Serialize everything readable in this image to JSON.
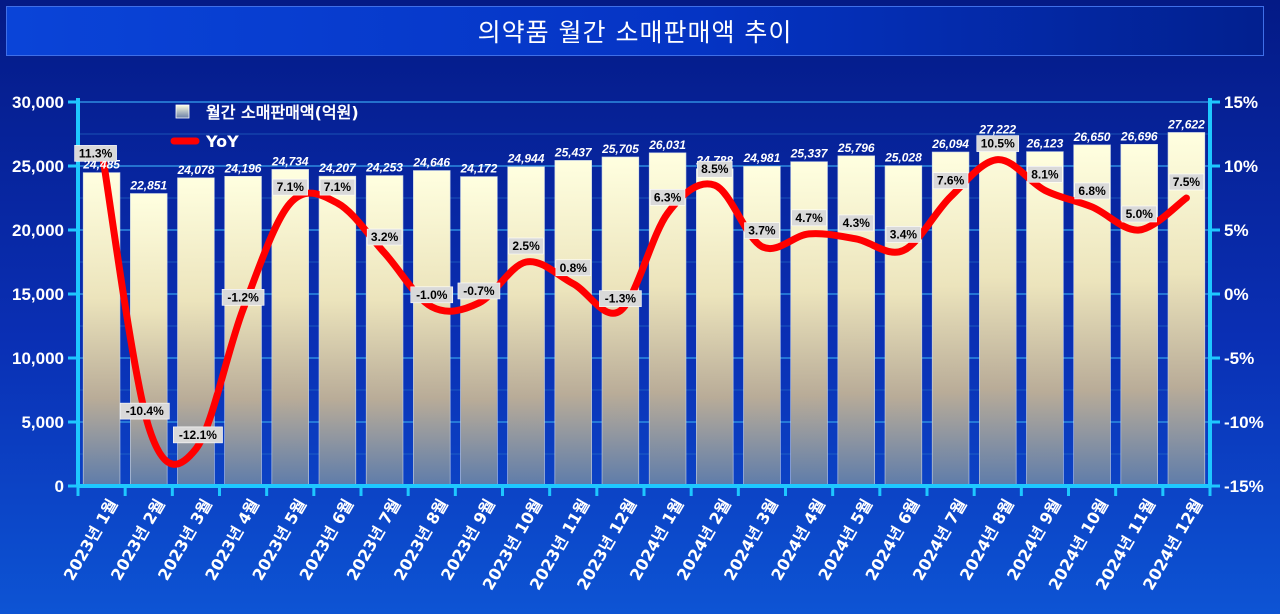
{
  "title": "의약품 월간 소매판매액 추이",
  "chart_data": {
    "type": "bar",
    "title": "의약품 월간 소매판매액 추이",
    "categories": [
      "2023년 1월",
      "2023년 2월",
      "2023년 3월",
      "2023년 4월",
      "2023년 5월",
      "2023년 6월",
      "2023년 7월",
      "2023년 8월",
      "2023년 9월",
      "2023년 10월",
      "2023년 11월",
      "2023년 12월",
      "2024년 1월",
      "2024년 2월",
      "2024년 3월",
      "2024년 4월",
      "2024년 5월",
      "2024년 6월",
      "2024년 7월",
      "2024년 8월",
      "2024년 9월",
      "2024년 10월",
      "2024년 11월",
      "2024년 12월"
    ],
    "series": [
      {
        "name": "월간 소매판매액(억원)",
        "type": "bar",
        "axis": "left",
        "values": [
          24485,
          22851,
          24078,
          24196,
          24734,
          24207,
          24253,
          24646,
          24172,
          24944,
          25437,
          25705,
          26031,
          24788,
          24981,
          25337,
          25796,
          25028,
          26094,
          27222,
          26123,
          26650,
          26696,
          27622
        ],
        "labels": [
          "24,485",
          "22,851",
          "24,078",
          "24,196",
          "24,734",
          "24,207",
          "24,253",
          "24,646",
          "24,172",
          "24,944",
          "25,437",
          "25,705",
          "26,031",
          "24,788",
          "24,981",
          "25,337",
          "25,796",
          "25,028",
          "26,094",
          "27,222",
          "26,123",
          "26,650",
          "26,696",
          "27,622"
        ]
      },
      {
        "name": "YoY",
        "type": "line",
        "axis": "right",
        "values": [
          11.3,
          -10.4,
          -12.1,
          -1.2,
          7.1,
          7.1,
          3.2,
          -1.0,
          -0.7,
          2.5,
          0.8,
          -1.3,
          6.3,
          8.5,
          3.7,
          4.7,
          4.3,
          3.4,
          7.6,
          10.5,
          8.1,
          6.8,
          5.0,
          7.5
        ],
        "labels": [
          "11.3%",
          "-10.4%",
          "-12.1%",
          "-1.2%",
          "7.1%",
          "7.1%",
          "3.2%",
          "-1.0%",
          "-0.7%",
          "2.5%",
          "0.8%",
          "-1.3%",
          "6.3%",
          "8.5%",
          "3.7%",
          "4.7%",
          "4.3%",
          "3.4%",
          "7.6%",
          "10.5%",
          "8.1%",
          "6.8%",
          "5.0%",
          "7.5%"
        ]
      }
    ],
    "y_left": {
      "min": 0,
      "max": 30000,
      "ticks": [
        0,
        5000,
        10000,
        15000,
        20000,
        25000,
        30000
      ],
      "tick_labels": [
        "0",
        "5,000",
        "10,000",
        "15,000",
        "20,000",
        "25,000",
        "30,000"
      ]
    },
    "y_right": {
      "min": -15,
      "max": 15,
      "ticks": [
        -15,
        -10,
        -5,
        0,
        5,
        10,
        15
      ],
      "tick_labels": [
        "-15%",
        "-10%",
        "-5%",
        "0%",
        "5%",
        "10%",
        "15%"
      ]
    },
    "legend_position": "top-left",
    "grid": true,
    "colors": {
      "line": "#ff0000",
      "grid": "#2f8fe0",
      "axis": "#1ec8ff",
      "bar_top": "#ffffde",
      "bar_bottom": "#5d7aa8"
    }
  }
}
